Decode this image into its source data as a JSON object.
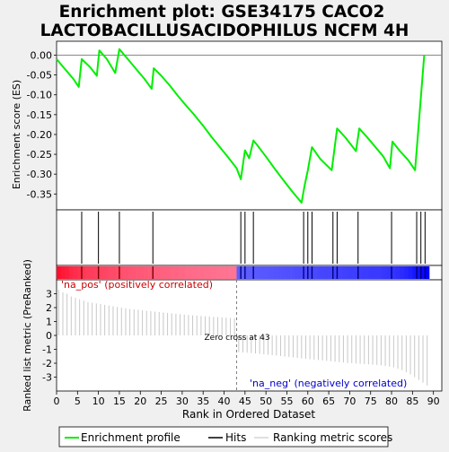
{
  "title_line1": "Enrichment plot: GSE34175 CACO2",
  "title_line2": "LACTOBACILLUSACIDOPHILUS NCFM 4H",
  "chart_data": {
    "type": "line",
    "x_label": "Rank in Ordered Dataset",
    "x_range": [
      0,
      92
    ],
    "x_ticks": [
      0,
      5,
      10,
      15,
      20,
      25,
      30,
      35,
      40,
      45,
      50,
      55,
      60,
      65,
      70,
      75,
      80,
      85,
      90
    ],
    "es_panel": {
      "ylabel": "Enrichment score (ES)",
      "ylim": [
        -0.39,
        0.035
      ],
      "y_ticks": [
        0.0,
        -0.05,
        -0.1,
        -0.15,
        -0.2,
        -0.25,
        -0.3,
        -0.35
      ],
      "y_tick_labels": [
        "0.00",
        "-0.05",
        "-0.10",
        "-0.15",
        "-0.20",
        "-0.25",
        "-0.30",
        "-0.35"
      ],
      "series_name": "Enrichment profile",
      "color": "#00ee00",
      "x": [
        0,
        2,
        4,
        5.3,
        6,
        8,
        9.6,
        10.2,
        12,
        14,
        15,
        17,
        19,
        21,
        22.7,
        23.2,
        25,
        27,
        29,
        31,
        33,
        35,
        37,
        39,
        41,
        43,
        44,
        45,
        46,
        47,
        48,
        50,
        52,
        54,
        56,
        58.5,
        59.2,
        60,
        61,
        63,
        65.7,
        67,
        69,
        71.5,
        72.3,
        74,
        76,
        78,
        79.6,
        80.2,
        82,
        84,
        85.6,
        86.3,
        87.2,
        87.8
      ],
      "y": [
        -0.01,
        -0.035,
        -0.06,
        -0.08,
        -0.01,
        -0.03,
        -0.052,
        0.012,
        -0.01,
        -0.045,
        0.015,
        -0.01,
        -0.035,
        -0.06,
        -0.085,
        -0.033,
        -0.052,
        -0.076,
        -0.103,
        -0.128,
        -0.152,
        -0.178,
        -0.206,
        -0.232,
        -0.258,
        -0.285,
        -0.313,
        -0.24,
        -0.26,
        -0.215,
        -0.228,
        -0.256,
        -0.285,
        -0.313,
        -0.34,
        -0.372,
        -0.33,
        -0.29,
        -0.232,
        -0.262,
        -0.29,
        -0.185,
        -0.208,
        -0.242,
        -0.185,
        -0.205,
        -0.23,
        -0.255,
        -0.285,
        -0.218,
        -0.242,
        -0.265,
        -0.29,
        -0.2,
        -0.08,
        0.0
      ]
    },
    "hits": [
      6,
      10,
      15,
      23,
      44,
      45,
      47,
      59,
      60,
      61,
      66,
      67,
      72,
      80,
      86,
      87,
      88
    ],
    "heatmap_bar": {
      "pos_label": "'na_pos' (positively correlated)",
      "neg_label": "'na_neg' (negatively correlated)",
      "pos_color": "#ff0000",
      "neg_color": "#0000ff"
    },
    "rank_panel": {
      "ylabel": "Ranked list metric (PreRanked)",
      "ylim": [
        -4,
        4
      ],
      "y_ticks": [
        3,
        2,
        1,
        0,
        -1,
        -2,
        -3
      ],
      "zero_cross": 43,
      "zero_cross_label": "Zero cross at 43",
      "values": [
        3.3,
        3.1,
        3.0,
        2.8,
        2.7,
        2.6,
        2.5,
        2.4,
        2.35,
        2.3,
        2.25,
        2.2,
        2.15,
        2.1,
        2.05,
        2.0,
        1.95,
        1.9,
        1.87,
        1.84,
        1.8,
        1.77,
        1.74,
        1.71,
        1.68,
        1.65,
        1.62,
        1.59,
        1.56,
        1.53,
        1.5,
        1.47,
        1.44,
        1.42,
        1.4,
        1.38,
        1.36,
        1.34,
        1.32,
        1.3,
        1.28,
        1.26,
        1.24,
        -1.2,
        -1.22,
        -1.24,
        -1.27,
        -1.3,
        -1.33,
        -1.36,
        -1.39,
        -1.42,
        -1.45,
        -1.48,
        -1.52,
        -1.55,
        -1.58,
        -1.62,
        -1.65,
        -1.68,
        -1.71,
        -1.74,
        -1.77,
        -1.8,
        -1.83,
        -1.86,
        -1.89,
        -1.92,
        -1.95,
        -1.98,
        -2.0,
        -2.02,
        -2.04,
        -2.06,
        -2.08,
        -2.1,
        -2.12,
        -2.15,
        -2.2,
        -2.25,
        -2.3,
        -2.4,
        -2.5,
        -2.65,
        -2.8,
        -3.0,
        -3.2,
        -3.4,
        -3.6
      ]
    },
    "legend": {
      "items": [
        "Enrichment profile",
        "Hits",
        "Ranking metric scores"
      ]
    }
  }
}
